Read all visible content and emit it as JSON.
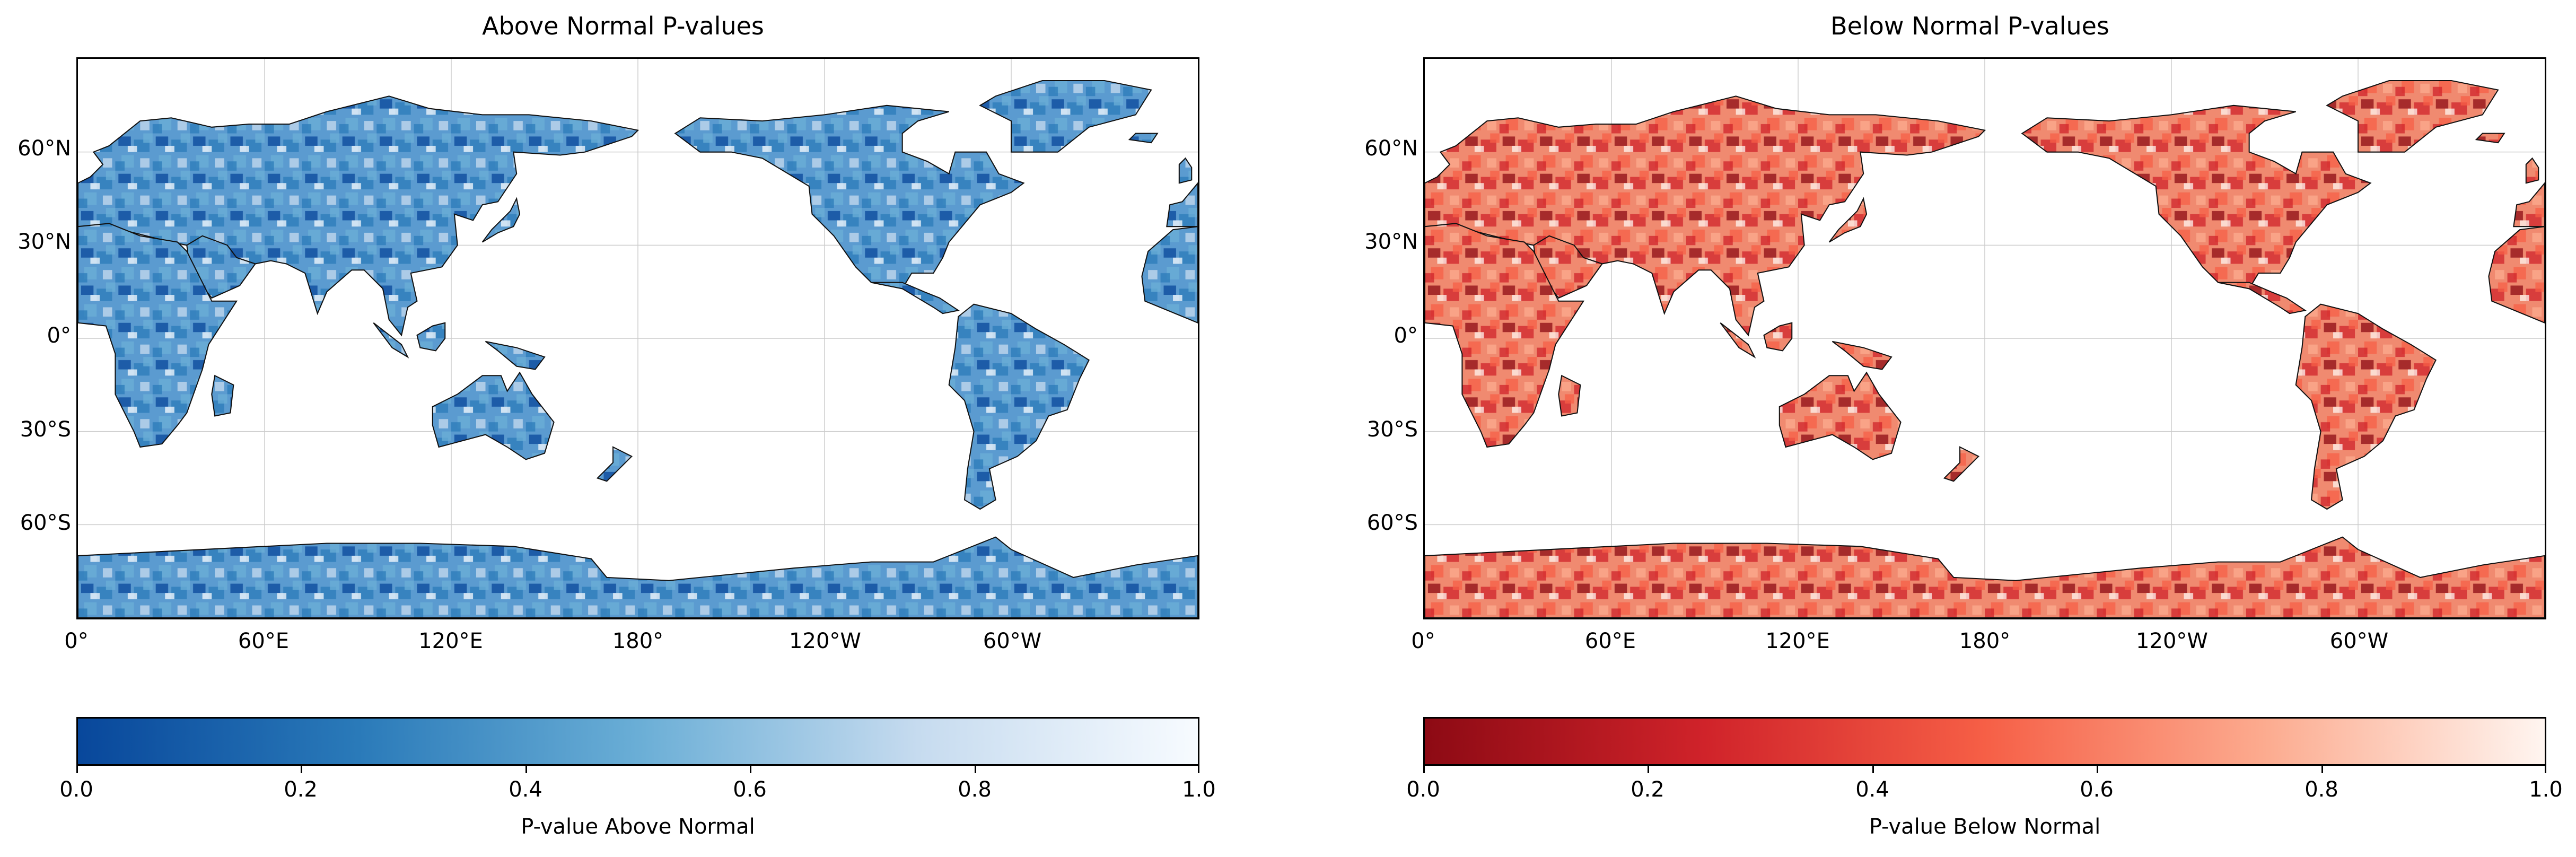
{
  "panels": [
    {
      "title": "Above Normal P-values",
      "colormap": "Blues_r",
      "colorbar_colors": [
        "#08479b",
        "#2a7ab9",
        "#6aaed6",
        "#c6dbef",
        "#f7fbff"
      ],
      "land_tint": "#5b9bd0",
      "colorbar_label": "P-value Above Normal"
    },
    {
      "title": "Below Normal P-values",
      "colormap": "Reds_r",
      "colorbar_colors": [
        "#8d0a14",
        "#d0232a",
        "#f65f46",
        "#fcab8f",
        "#fff5f0"
      ],
      "land_tint": "#f08a70",
      "colorbar_label": "P-value Below Normal"
    }
  ],
  "lat_ticks": [
    "60°N",
    "30°N",
    "0°",
    "30°S",
    "60°S"
  ],
  "lon_ticks": [
    "0°",
    "60°E",
    "120°E",
    "180°",
    "120°W",
    "60°W"
  ],
  "colorbar_ticks": [
    "0.0",
    "0.2",
    "0.4",
    "0.6",
    "0.8",
    "1.0"
  ],
  "colorbar_range": [
    0.0,
    1.0
  ]
}
